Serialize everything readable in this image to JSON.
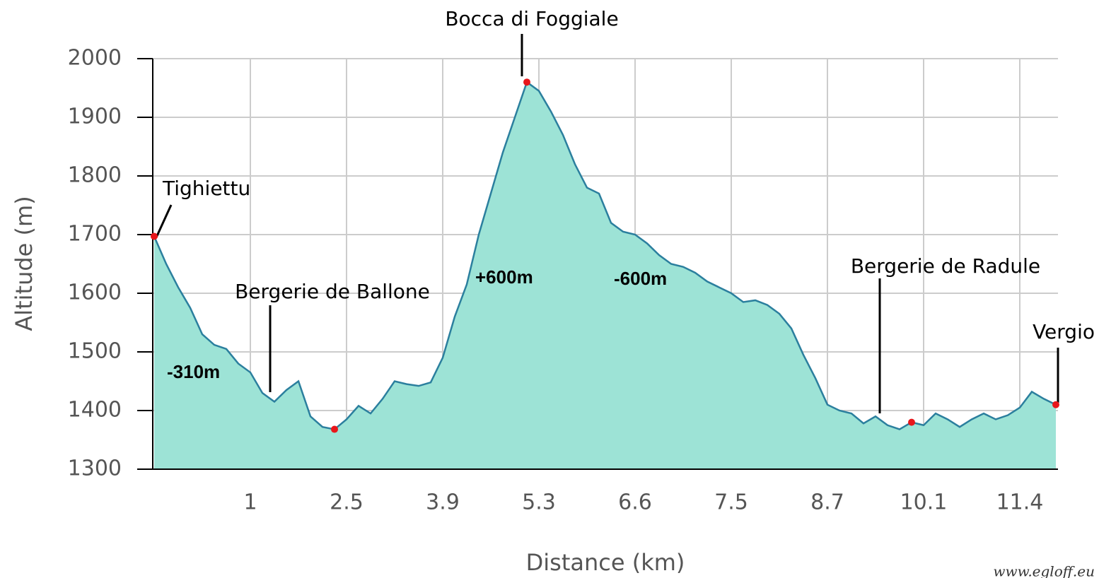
{
  "chart_data": {
    "type": "area",
    "xlabel": "Distance (km)",
    "ylabel": "Altitude (m)",
    "categories": [
      null,
      null,
      null,
      null,
      null,
      null,
      null,
      null,
      "1",
      null,
      null,
      null,
      null,
      null,
      null,
      null,
      "2.5",
      null,
      null,
      null,
      null,
      null,
      null,
      null,
      "3.9",
      null,
      null,
      null,
      null,
      null,
      null,
      null,
      "5.3",
      null,
      null,
      null,
      null,
      null,
      null,
      null,
      "6.6",
      null,
      null,
      null,
      null,
      null,
      null,
      null,
      "7.5",
      null,
      null,
      null,
      null,
      null,
      null,
      null,
      "8.7",
      null,
      null,
      null,
      null,
      null,
      null,
      null,
      "10.1",
      null,
      null,
      null,
      null,
      null,
      null,
      null,
      "11.4",
      null,
      null,
      null
    ],
    "values": [
      1697,
      1650,
      1610,
      1575,
      1530,
      1512,
      1505,
      1480,
      1465,
      1430,
      1415,
      1435,
      1450,
      1390,
      1372,
      1368,
      1385,
      1408,
      1395,
      1420,
      1450,
      1445,
      1442,
      1448,
      1490,
      1560,
      1615,
      1700,
      1770,
      1840,
      1900,
      1960,
      1945,
      1910,
      1870,
      1820,
      1780,
      1770,
      1720,
      1705,
      1700,
      1685,
      1665,
      1650,
      1645,
      1635,
      1620,
      1610,
      1600,
      1585,
      1588,
      1580,
      1565,
      1540,
      1495,
      1455,
      1410,
      1400,
      1395,
      1378,
      1390,
      1375,
      1368,
      1380,
      1375,
      1395,
      1385,
      1372,
      1385,
      1395,
      1385,
      1392,
      1405,
      1432,
      1420,
      1410
    ],
    "color": "#9de3d6",
    "line_color": "#2b7f9e",
    "ylim": [
      1300,
      2000
    ],
    "yticks": [
      1300,
      1400,
      1500,
      1600,
      1700,
      1800,
      1900,
      2000
    ],
    "grid": true,
    "annotations": [
      "Tighiettu",
      "Bergerie de Ballone",
      "Bocca di Foggiale",
      "Bergerie de Radule",
      "Vergio",
      "-310m",
      "+600m",
      "-600m"
    ],
    "source": "www.egloff.eu"
  }
}
